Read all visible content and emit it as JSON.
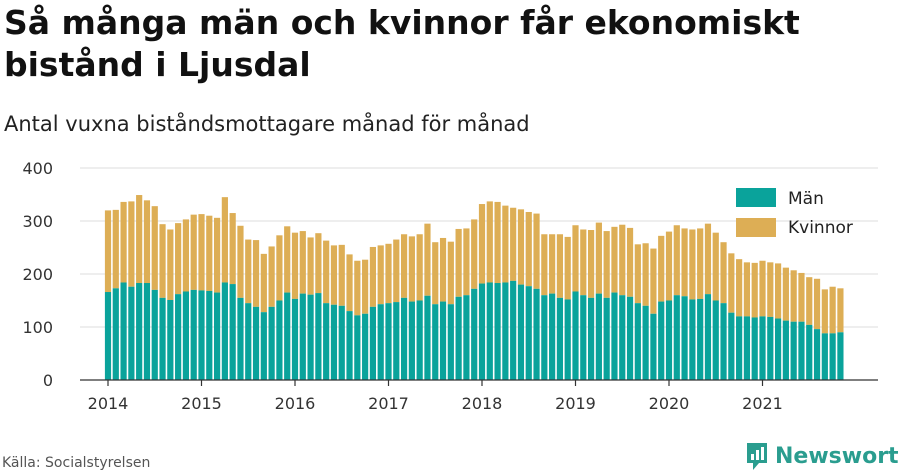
{
  "title": "Så många män och kvinnor får ekonomiskt bistånd i Ljusdal",
  "subtitle": "Antal vuxna biståndsmottagare månad för månad",
  "source": "Källa: Socialstyrelsen",
  "brand": {
    "name": "Newsworthy",
    "logo_icon": "newsworthy-logo-icon"
  },
  "colors": {
    "men": "#0aa39b",
    "women": "#ddae55",
    "grid": "#dddddd",
    "axis": "#333333",
    "brand": "#2a9d8f"
  },
  "chart_data": {
    "type": "bar",
    "stacked": true,
    "title": "Så många män och kvinnor får ekonomiskt bistånd i Ljusdal",
    "subtitle": "Antal vuxna biståndsmottagare månad för månad",
    "x_start": "2014-01",
    "x_end": "2021-11",
    "x_ticks": [
      "2014",
      "2015",
      "2016",
      "2017",
      "2018",
      "2019",
      "2020",
      "2021"
    ],
    "y_ticks": [
      0,
      100,
      200,
      300,
      400
    ],
    "ylim": [
      0,
      400
    ],
    "grid": true,
    "legend_position": "top-right",
    "series": [
      {
        "name": "Män",
        "values": [
          166,
          173,
          184,
          176,
          183,
          183,
          170,
          155,
          151,
          162,
          167,
          170,
          169,
          168,
          165,
          184,
          181,
          155,
          145,
          138,
          128,
          138,
          150,
          165,
          153,
          163,
          161,
          164,
          145,
          142,
          140,
          130,
          122,
          125,
          138,
          143,
          145,
          147,
          155,
          148,
          150,
          159,
          143,
          148,
          143,
          157,
          160,
          172,
          182,
          184,
          183,
          184,
          187,
          180,
          177,
          172,
          160,
          163,
          155,
          152,
          167,
          160,
          155,
          163,
          155,
          165,
          160,
          157,
          145,
          140,
          125,
          148,
          150,
          160,
          158,
          152,
          153,
          162,
          150,
          145,
          127,
          120,
          120,
          118,
          120,
          119,
          116,
          112,
          110,
          110,
          104,
          96,
          88,
          88,
          90
        ]
      },
      {
        "name": "Kvinnor",
        "values": [
          154,
          148,
          152,
          161,
          166,
          156,
          158,
          139,
          133,
          134,
          136,
          142,
          144,
          142,
          141,
          161,
          134,
          136,
          120,
          126,
          110,
          114,
          123,
          125,
          125,
          118,
          108,
          113,
          118,
          112,
          115,
          107,
          103,
          102,
          113,
          111,
          112,
          118,
          120,
          123,
          125,
          136,
          117,
          120,
          118,
          128,
          126,
          131,
          150,
          153,
          153,
          145,
          138,
          142,
          140,
          142,
          115,
          112,
          120,
          118,
          125,
          124,
          128,
          134,
          126,
          124,
          133,
          130,
          111,
          118,
          123,
          124,
          130,
          132,
          128,
          132,
          133,
          133,
          128,
          115,
          112,
          108,
          102,
          103,
          105,
          103,
          104,
          100,
          97,
          92,
          90,
          95,
          83,
          88,
          83
        ]
      }
    ]
  }
}
